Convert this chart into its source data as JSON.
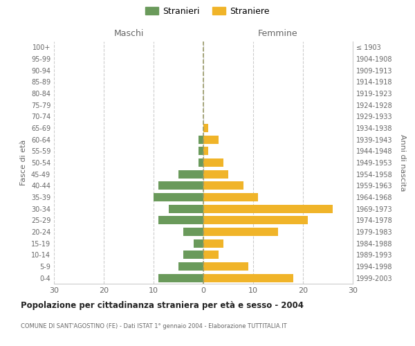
{
  "age_groups": [
    "0-4",
    "5-9",
    "10-14",
    "15-19",
    "20-24",
    "25-29",
    "30-34",
    "35-39",
    "40-44",
    "45-49",
    "50-54",
    "55-59",
    "60-64",
    "65-69",
    "70-74",
    "75-79",
    "80-84",
    "85-89",
    "90-94",
    "95-99",
    "100+"
  ],
  "birth_years": [
    "1999-2003",
    "1994-1998",
    "1989-1993",
    "1984-1988",
    "1979-1983",
    "1974-1978",
    "1969-1973",
    "1964-1968",
    "1959-1963",
    "1954-1958",
    "1949-1953",
    "1944-1948",
    "1939-1943",
    "1934-1938",
    "1929-1933",
    "1924-1928",
    "1919-1923",
    "1914-1918",
    "1909-1913",
    "1904-1908",
    "≤ 1903"
  ],
  "maschi": [
    9,
    5,
    4,
    2,
    4,
    9,
    7,
    10,
    9,
    5,
    1,
    1,
    1,
    0,
    0,
    0,
    0,
    0,
    0,
    0,
    0
  ],
  "femmine": [
    18,
    9,
    3,
    4,
    15,
    21,
    26,
    11,
    8,
    5,
    4,
    1,
    3,
    1,
    0,
    0,
    0,
    0,
    0,
    0,
    0
  ],
  "maschi_color": "#6a9a5b",
  "femmine_color": "#f0b429",
  "title": "Popolazione per cittadinanza straniera per età e sesso - 2004",
  "subtitle": "COMUNE DI SANT'AGOSTINO (FE) - Dati ISTAT 1° gennaio 2004 - Elaborazione TUTTITALIA.IT",
  "xlabel_left": "Maschi",
  "xlabel_right": "Femmine",
  "ylabel_left": "Fasce di età",
  "ylabel_right": "Anni di nascita",
  "legend_maschi": "Stranieri",
  "legend_femmine": "Straniere",
  "xlim": 30,
  "background_color": "#ffffff",
  "grid_color": "#cccccc"
}
